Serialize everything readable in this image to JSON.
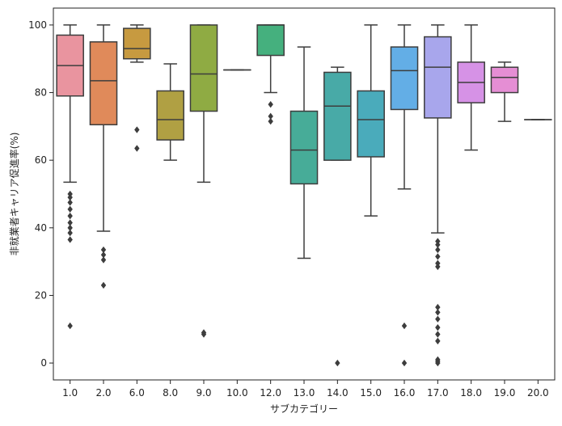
{
  "chart_data": {
    "type": "box",
    "title": "",
    "xlabel": "サブカテゴリー",
    "ylabel": "非就業者キャリア促進率(%)",
    "ylim": [
      -5,
      105
    ],
    "yticks": [
      0,
      20,
      40,
      60,
      80,
      100
    ],
    "grid": false,
    "categories": [
      "1.0",
      "2.0",
      "6.0",
      "8.0",
      "9.0",
      "10.0",
      "12.0",
      "13.0",
      "14.0",
      "15.0",
      "16.0",
      "17.0",
      "18.0",
      "19.0",
      "20.0"
    ],
    "boxes": [
      {
        "category": "1.0",
        "color": "#e9949f",
        "whislo": 53.5,
        "q1": 79,
        "median": 88,
        "q3": 97,
        "whishi": 100,
        "fliers": [
          50,
          49,
          47.5,
          45.5,
          43.5,
          41.5,
          40,
          38.5,
          36.5,
          11
        ]
      },
      {
        "category": "2.0",
        "color": "#e08a5a",
        "whislo": 39,
        "q1": 70.5,
        "median": 83.5,
        "q3": 95,
        "whishi": 100,
        "fliers": [
          33.5,
          32,
          30.5,
          23
        ]
      },
      {
        "category": "6.0",
        "color": "#c79a40",
        "whislo": 89,
        "q1": 90,
        "median": 93,
        "q3": 99,
        "whishi": 100,
        "fliers": [
          69,
          63.5
        ]
      },
      {
        "category": "8.0",
        "color": "#b0a043",
        "whislo": 60,
        "q1": 66,
        "median": 72,
        "q3": 80.5,
        "whishi": 88.5,
        "fliers": []
      },
      {
        "category": "9.0",
        "color": "#8fab43",
        "whislo": 53.5,
        "q1": 74.5,
        "median": 85.5,
        "q3": 100,
        "whishi": 100,
        "fliers": [
          9,
          8.5
        ]
      },
      {
        "category": "10.0",
        "color": "#58b450",
        "whislo": 86.7,
        "q1": 86.7,
        "median": 86.7,
        "q3": 86.7,
        "whishi": 86.7,
        "fliers": []
      },
      {
        "category": "12.0",
        "color": "#45b07e",
        "whislo": 80,
        "q1": 91,
        "median": 100,
        "q3": 100,
        "whishi": 100,
        "fliers": [
          76.5,
          73,
          71.5
        ]
      },
      {
        "category": "13.0",
        "color": "#47ac98",
        "whislo": 31,
        "q1": 53,
        "median": 63,
        "q3": 74.5,
        "whishi": 93.5,
        "fliers": []
      },
      {
        "category": "14.0",
        "color": "#48aaa7",
        "whislo": 60,
        "q1": 60,
        "median": 76,
        "q3": 86,
        "whishi": 87.5,
        "fliers": [
          0
        ]
      },
      {
        "category": "15.0",
        "color": "#4aabbb",
        "whislo": 43.5,
        "q1": 61,
        "median": 72,
        "q3": 80.5,
        "whishi": 100,
        "fliers": []
      },
      {
        "category": "16.0",
        "color": "#63aee6",
        "whislo": 51.5,
        "q1": 75,
        "median": 86.5,
        "q3": 93.5,
        "whishi": 100,
        "fliers": [
          11,
          0
        ]
      },
      {
        "category": "17.0",
        "color": "#a8a6ec",
        "whislo": 38.5,
        "q1": 72.5,
        "median": 87.5,
        "q3": 96.5,
        "whishi": 100,
        "fliers": [
          36,
          35,
          33.5,
          31.5,
          29.5,
          28.5,
          16.5,
          15,
          13,
          10.5,
          8.5,
          6.5,
          1,
          0.5,
          0
        ]
      },
      {
        "category": "18.0",
        "color": "#d692e6",
        "whislo": 63,
        "q1": 77,
        "median": 83,
        "q3": 89,
        "whishi": 100,
        "fliers": []
      },
      {
        "category": "19.0",
        "color": "#e58ed4",
        "whislo": 71.5,
        "q1": 80,
        "median": 84.5,
        "q3": 87.5,
        "whishi": 89,
        "fliers": []
      },
      {
        "category": "20.0",
        "color": "#e98bb3",
        "whislo": 72,
        "q1": 72,
        "median": 72,
        "q3": 72,
        "whishi": 72,
        "fliers": []
      }
    ],
    "line_color": "#3d3d3d"
  }
}
